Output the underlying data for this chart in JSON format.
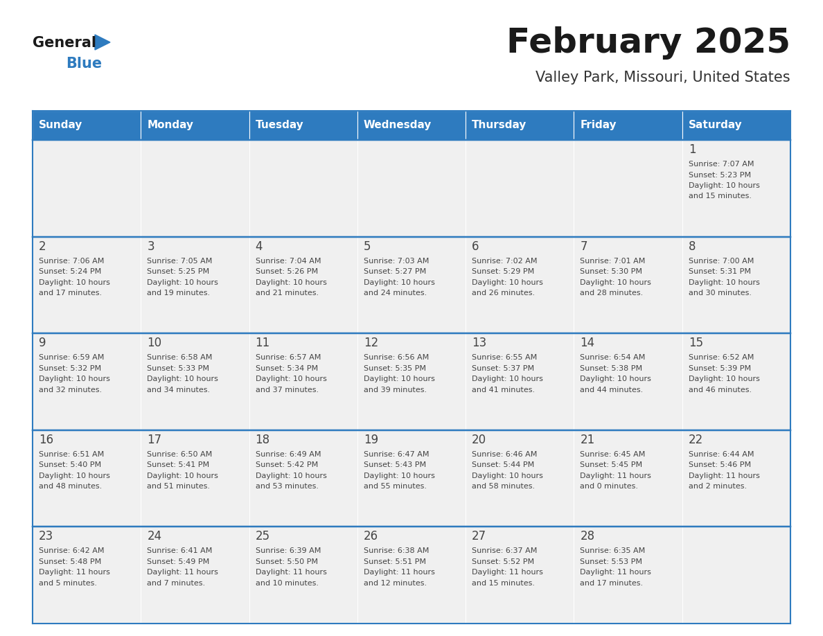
{
  "title": "February 2025",
  "subtitle": "Valley Park, Missouri, United States",
  "days_of_week": [
    "Sunday",
    "Monday",
    "Tuesday",
    "Wednesday",
    "Thursday",
    "Friday",
    "Saturday"
  ],
  "header_bg": "#2E7BBF",
  "header_text": "#FFFFFF",
  "cell_bg": "#F0F0F0",
  "border_color": "#2E7BBF",
  "cell_border_color": "#FFFFFF",
  "text_color": "#444444",
  "title_color": "#1a1a1a",
  "subtitle_color": "#333333",
  "logo_general_color": "#1a1a1a",
  "logo_blue_color": "#2E7BBF",
  "weeks": [
    [
      {
        "day": null,
        "sunrise": null,
        "sunset": null,
        "daylight": null
      },
      {
        "day": null,
        "sunrise": null,
        "sunset": null,
        "daylight": null
      },
      {
        "day": null,
        "sunrise": null,
        "sunset": null,
        "daylight": null
      },
      {
        "day": null,
        "sunrise": null,
        "sunset": null,
        "daylight": null
      },
      {
        "day": null,
        "sunrise": null,
        "sunset": null,
        "daylight": null
      },
      {
        "day": null,
        "sunrise": null,
        "sunset": null,
        "daylight": null
      },
      {
        "day": 1,
        "sunrise": "7:07 AM",
        "sunset": "5:23 PM",
        "daylight": "10 hours\nand 15 minutes."
      }
    ],
    [
      {
        "day": 2,
        "sunrise": "7:06 AM",
        "sunset": "5:24 PM",
        "daylight": "10 hours\nand 17 minutes."
      },
      {
        "day": 3,
        "sunrise": "7:05 AM",
        "sunset": "5:25 PM",
        "daylight": "10 hours\nand 19 minutes."
      },
      {
        "day": 4,
        "sunrise": "7:04 AM",
        "sunset": "5:26 PM",
        "daylight": "10 hours\nand 21 minutes."
      },
      {
        "day": 5,
        "sunrise": "7:03 AM",
        "sunset": "5:27 PM",
        "daylight": "10 hours\nand 24 minutes."
      },
      {
        "day": 6,
        "sunrise": "7:02 AM",
        "sunset": "5:29 PM",
        "daylight": "10 hours\nand 26 minutes."
      },
      {
        "day": 7,
        "sunrise": "7:01 AM",
        "sunset": "5:30 PM",
        "daylight": "10 hours\nand 28 minutes."
      },
      {
        "day": 8,
        "sunrise": "7:00 AM",
        "sunset": "5:31 PM",
        "daylight": "10 hours\nand 30 minutes."
      }
    ],
    [
      {
        "day": 9,
        "sunrise": "6:59 AM",
        "sunset": "5:32 PM",
        "daylight": "10 hours\nand 32 minutes."
      },
      {
        "day": 10,
        "sunrise": "6:58 AM",
        "sunset": "5:33 PM",
        "daylight": "10 hours\nand 34 minutes."
      },
      {
        "day": 11,
        "sunrise": "6:57 AM",
        "sunset": "5:34 PM",
        "daylight": "10 hours\nand 37 minutes."
      },
      {
        "day": 12,
        "sunrise": "6:56 AM",
        "sunset": "5:35 PM",
        "daylight": "10 hours\nand 39 minutes."
      },
      {
        "day": 13,
        "sunrise": "6:55 AM",
        "sunset": "5:37 PM",
        "daylight": "10 hours\nand 41 minutes."
      },
      {
        "day": 14,
        "sunrise": "6:54 AM",
        "sunset": "5:38 PM",
        "daylight": "10 hours\nand 44 minutes."
      },
      {
        "day": 15,
        "sunrise": "6:52 AM",
        "sunset": "5:39 PM",
        "daylight": "10 hours\nand 46 minutes."
      }
    ],
    [
      {
        "day": 16,
        "sunrise": "6:51 AM",
        "sunset": "5:40 PM",
        "daylight": "10 hours\nand 48 minutes."
      },
      {
        "day": 17,
        "sunrise": "6:50 AM",
        "sunset": "5:41 PM",
        "daylight": "10 hours\nand 51 minutes."
      },
      {
        "day": 18,
        "sunrise": "6:49 AM",
        "sunset": "5:42 PM",
        "daylight": "10 hours\nand 53 minutes."
      },
      {
        "day": 19,
        "sunrise": "6:47 AM",
        "sunset": "5:43 PM",
        "daylight": "10 hours\nand 55 minutes."
      },
      {
        "day": 20,
        "sunrise": "6:46 AM",
        "sunset": "5:44 PM",
        "daylight": "10 hours\nand 58 minutes."
      },
      {
        "day": 21,
        "sunrise": "6:45 AM",
        "sunset": "5:45 PM",
        "daylight": "11 hours\nand 0 minutes."
      },
      {
        "day": 22,
        "sunrise": "6:44 AM",
        "sunset": "5:46 PM",
        "daylight": "11 hours\nand 2 minutes."
      }
    ],
    [
      {
        "day": 23,
        "sunrise": "6:42 AM",
        "sunset": "5:48 PM",
        "daylight": "11 hours\nand 5 minutes."
      },
      {
        "day": 24,
        "sunrise": "6:41 AM",
        "sunset": "5:49 PM",
        "daylight": "11 hours\nand 7 minutes."
      },
      {
        "day": 25,
        "sunrise": "6:39 AM",
        "sunset": "5:50 PM",
        "daylight": "11 hours\nand 10 minutes."
      },
      {
        "day": 26,
        "sunrise": "6:38 AM",
        "sunset": "5:51 PM",
        "daylight": "11 hours\nand 12 minutes."
      },
      {
        "day": 27,
        "sunrise": "6:37 AM",
        "sunset": "5:52 PM",
        "daylight": "11 hours\nand 15 minutes."
      },
      {
        "day": 28,
        "sunrise": "6:35 AM",
        "sunset": "5:53 PM",
        "daylight": "11 hours\nand 17 minutes."
      },
      {
        "day": null,
        "sunrise": null,
        "sunset": null,
        "daylight": null
      }
    ]
  ],
  "figw": 11.88,
  "figh": 9.18,
  "dpi": 100
}
